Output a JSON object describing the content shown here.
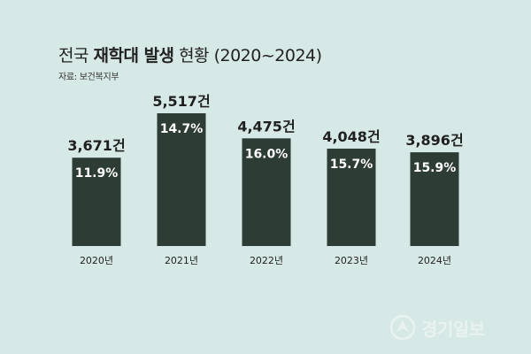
{
  "header": {
    "title_regular_1": "전국",
    "title_bold": "재학대 발생",
    "title_regular_2": "현황 (2020~2024)",
    "source": "자료: 보건복지부"
  },
  "chart_data": {
    "type": "bar",
    "categories": [
      "2020년",
      "2021년",
      "2022년",
      "2023년",
      "2024년"
    ],
    "values": [
      3671,
      5517,
      4475,
      4048,
      3896
    ],
    "value_labels": [
      "3,671건",
      "5,517건",
      "4,475건",
      "4,048건",
      "3,896건"
    ],
    "rate_labels": [
      "11.9%",
      "14.7%",
      "16.0%",
      "15.7%",
      "15.9%"
    ],
    "title": "전국 재학대 발생 현황 (2020~2024)",
    "xlabel": "",
    "ylabel": "",
    "bar_color": "#2d3d35",
    "label_color": "#ffffff",
    "grid": false
  },
  "watermark": {
    "text": "경기일보",
    "icon": "gyeonggi-ilbo-logo-icon"
  }
}
